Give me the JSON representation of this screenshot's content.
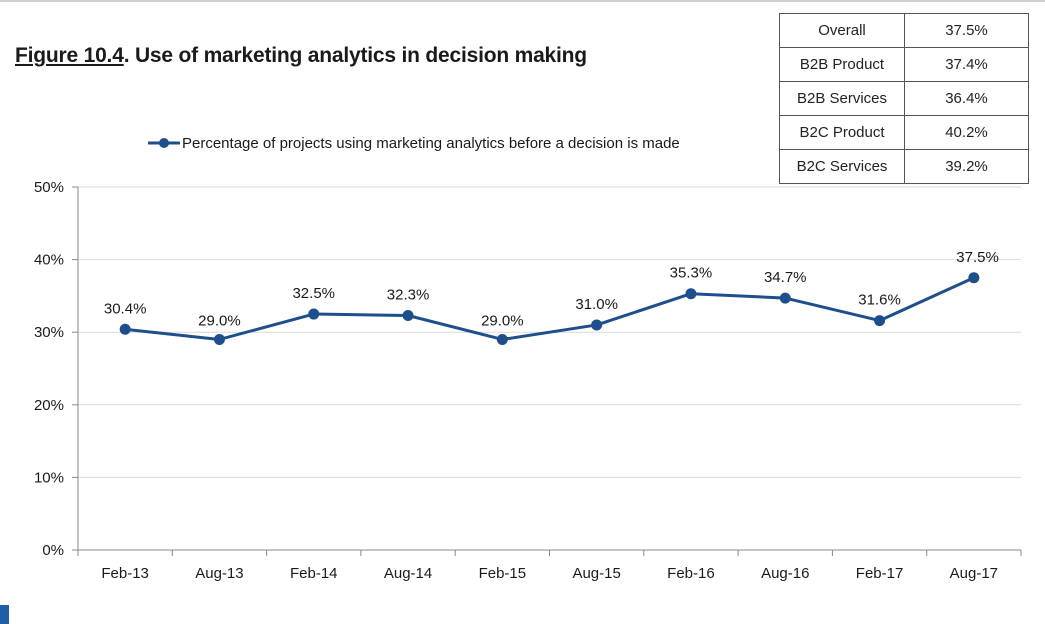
{
  "title": {
    "number": "Figure 10.4",
    "text": ". Use of marketing analytics in decision making"
  },
  "summary_table": [
    {
      "label": "Overall",
      "value": "37.5%"
    },
    {
      "label": "B2B Product",
      "value": "37.4%"
    },
    {
      "label": "B2B Services",
      "value": "36.4%"
    },
    {
      "label": "B2C Product",
      "value": "40.2%"
    },
    {
      "label": "B2C Services",
      "value": "39.2%"
    }
  ],
  "chart_data": {
    "type": "line",
    "title": "Use of marketing analytics in decision making",
    "xlabel": "",
    "ylabel": "",
    "categories": [
      "Feb-13",
      "Aug-13",
      "Feb-14",
      "Aug-14",
      "Feb-15",
      "Aug-15",
      "Feb-16",
      "Aug-16",
      "Feb-17",
      "Aug-17"
    ],
    "series": [
      {
        "name": "Percentage of projects using marketing analytics before a decision is made",
        "values": [
          30.4,
          29.0,
          32.5,
          32.3,
          29.0,
          31.0,
          35.3,
          34.7,
          31.6,
          37.5
        ],
        "labels": [
          "30.4%",
          "29.0%",
          "32.5%",
          "32.3%",
          "29.0%",
          "31.0%",
          "35.3%",
          "34.7%",
          "31.6%",
          "37.5%"
        ],
        "label_position": [
          "above",
          "below",
          "above",
          "above",
          "below",
          "above",
          "above",
          "above",
          "above",
          "above"
        ],
        "color": "#1f4e8c"
      }
    ],
    "ylim": [
      0,
      50
    ],
    "y_ticks": [
      0,
      10,
      20,
      30,
      40,
      50
    ],
    "y_tick_labels": [
      "0%",
      "10%",
      "20%",
      "30%",
      "40%",
      "50%"
    ],
    "grid": true,
    "grid_color": "#d9d9d9",
    "legend_placement": "top-left"
  }
}
